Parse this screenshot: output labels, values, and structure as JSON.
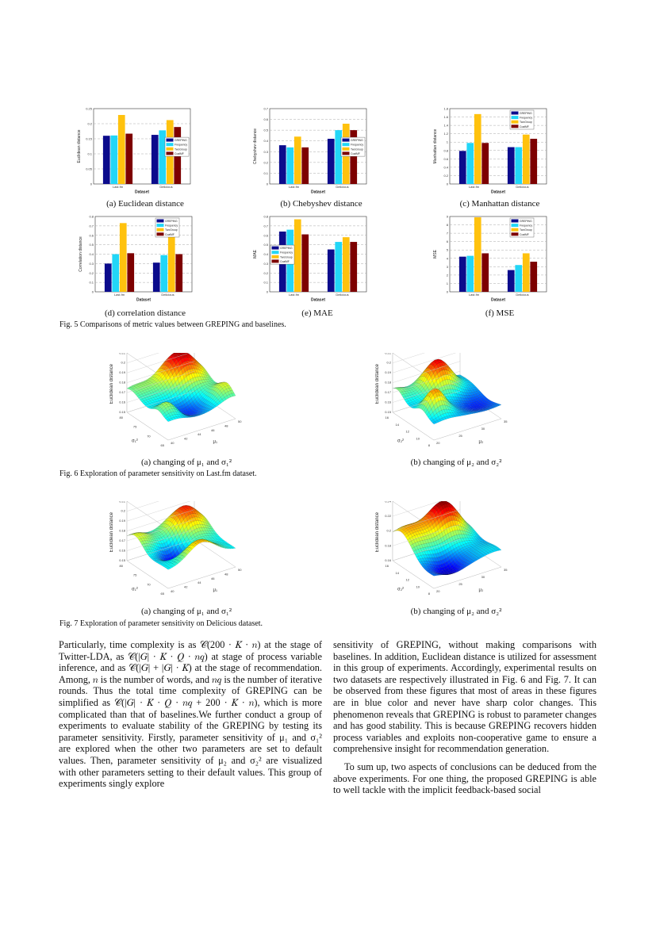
{
  "colors": {
    "greping": "#0b0b8c",
    "frequency": "#22d6f7",
    "twogroup": "#ffc20e",
    "coalmf": "#7d0000"
  },
  "fig5": {
    "caption": "Fig. 5  Comparisons of metric values between GREPING and baselines.",
    "subcaptions": [
      "(a) Euclidean distance",
      "(b) Chebyshev distance",
      "(c) Manhattan distance",
      "(d) correlation distance",
      "(e) MAE",
      "(f) MSE"
    ]
  },
  "fig6": {
    "caption": "Fig. 6  Exploration of parameter sensitivity on Last.fm dataset.",
    "subcaptions": [
      "(a) changing of μ₁ and σ₁²",
      "(b) changing of μ₂ and σ₂²"
    ]
  },
  "fig7": {
    "caption": "Fig. 7  Exploration of parameter sensitivity on Delicious dataset.",
    "subcaptions": [
      "(a) changing of μ₁ and σ₁²",
      "(b) changing of μ₂ and σ₂²"
    ]
  },
  "chart_data": [
    {
      "type": "bar",
      "xlabel": "Dataset",
      "ylabel": "Euclidean distance",
      "categories": [
        "Last.fm",
        "Delicious"
      ],
      "ylim": [
        0,
        0.25
      ],
      "yticks": [
        "0",
        "0.05",
        "0.1",
        "0.15",
        "0.2",
        "0.25"
      ],
      "grid": true,
      "legend": "right",
      "series": [
        {
          "name": "GREPING",
          "values": [
            0.16,
            0.163
          ]
        },
        {
          "name": "Frequency",
          "values": [
            0.161,
            0.178
          ]
        },
        {
          "name": "TwoGroup",
          "values": [
            0.229,
            0.212
          ]
        },
        {
          "name": "CoalMF",
          "values": [
            0.167,
            0.189
          ]
        }
      ]
    },
    {
      "type": "bar",
      "xlabel": "Dataset",
      "ylabel": "Chebyshev distance",
      "categories": [
        "Last.fm",
        "Delicious"
      ],
      "ylim": [
        0,
        0.7
      ],
      "yticks": [
        "0",
        "0.1",
        "0.2",
        "0.3",
        "0.4",
        "0.5",
        "0.6",
        "0.7"
      ],
      "grid": true,
      "legend": "right",
      "series": [
        {
          "name": "GREPING",
          "values": [
            0.36,
            0.42
          ]
        },
        {
          "name": "Frequency",
          "values": [
            0.34,
            0.5
          ]
        },
        {
          "name": "TwoGroup",
          "values": [
            0.44,
            0.56
          ]
        },
        {
          "name": "CoalMF",
          "values": [
            0.34,
            0.5
          ]
        }
      ]
    },
    {
      "type": "bar",
      "xlabel": "Dataset",
      "ylabel": "Manhattan distance",
      "categories": [
        "Last.fm",
        "Delicious"
      ],
      "ylim": [
        0,
        1.8
      ],
      "yticks": [
        "0",
        "0.2",
        "0.4",
        "0.6",
        "0.8",
        "1",
        "1.2",
        "1.4",
        "1.6",
        "1.8"
      ],
      "grid": true,
      "legend": "top-right",
      "series": [
        {
          "name": "GREPING",
          "values": [
            0.79,
            0.88
          ]
        },
        {
          "name": "Frequency",
          "values": [
            0.98,
            0.88
          ]
        },
        {
          "name": "TwoGroup",
          "values": [
            1.67,
            1.18
          ]
        },
        {
          "name": "CoalMF",
          "values": [
            0.98,
            1.08
          ]
        }
      ]
    },
    {
      "type": "bar",
      "xlabel": "Dataset",
      "ylabel": "Correlation distance",
      "categories": [
        "Last.fm",
        "Delicious"
      ],
      "ylim": [
        0,
        0.8
      ],
      "yticks": [
        "0",
        "0.1",
        "0.2",
        "0.3",
        "0.4",
        "0.5",
        "0.6",
        "0.7",
        "0.8"
      ],
      "grid": true,
      "legend": "top-right",
      "series": [
        {
          "name": "GREPING",
          "values": [
            0.3,
            0.31
          ]
        },
        {
          "name": "Frequency",
          "values": [
            0.4,
            0.39
          ]
        },
        {
          "name": "TwoGroup",
          "values": [
            0.73,
            0.7
          ]
        },
        {
          "name": "CoalMF",
          "values": [
            0.41,
            0.4
          ]
        }
      ]
    },
    {
      "type": "bar",
      "xlabel": "Dataset",
      "ylabel": "MAE",
      "categories": [
        "Last.fm",
        "Delicious"
      ],
      "ylim": [
        0,
        0.8
      ],
      "yticks": [
        "0",
        "0.1",
        "0.2",
        "0.3",
        "0.4",
        "0.5",
        "0.6",
        "0.7",
        "0.8"
      ],
      "grid": true,
      "legend": "left",
      "series": [
        {
          "name": "GREPING",
          "values": [
            0.64,
            0.45
          ]
        },
        {
          "name": "Frequency",
          "values": [
            0.66,
            0.53
          ]
        },
        {
          "name": "TwoGroup",
          "values": [
            0.77,
            0.58
          ]
        },
        {
          "name": "CoalMF",
          "values": [
            0.61,
            0.53
          ]
        }
      ]
    },
    {
      "type": "bar",
      "xlabel": "Dataset",
      "ylabel": "MSE",
      "categories": [
        "Last.fm",
        "Delicious"
      ],
      "ylim": [
        0,
        9
      ],
      "yticks": [
        "0",
        "1",
        "2",
        "3",
        "4",
        "5",
        "6",
        "7",
        "8",
        "9"
      ],
      "grid": true,
      "legend": "top-right",
      "series": [
        {
          "name": "GREPING",
          "values": [
            4.2,
            2.6
          ]
        },
        {
          "name": "Frequency",
          "values": [
            4.3,
            3.2
          ]
        },
        {
          "name": "TwoGroup",
          "values": [
            8.9,
            4.6
          ]
        },
        {
          "name": "CoalMF",
          "values": [
            4.6,
            3.6
          ]
        }
      ]
    },
    {
      "type": "surface",
      "zlabel": "Euclidean distance",
      "xlabel": "μ₁",
      "ylabel": "σ₁²",
      "xlim": [
        40,
        50
      ],
      "ylim": [
        65,
        80
      ],
      "zlim": [
        0.15,
        0.21
      ],
      "xticks": [
        "40",
        "42",
        "44",
        "46",
        "48",
        "50"
      ],
      "yticks": [
        "65",
        "70",
        "75",
        "80"
      ],
      "zticks": [
        "0.15",
        "0.16",
        "0.17",
        "0.18",
        "0.19",
        "0.2",
        "0.21"
      ],
      "colormap": "jet"
    },
    {
      "type": "surface",
      "zlabel": "Euclidean distance",
      "xlabel": "μ₂",
      "ylabel": "σ₂²",
      "xlim": [
        20,
        35
      ],
      "ylim": [
        8,
        16
      ],
      "zlim": [
        0.15,
        0.21
      ],
      "xticks": [
        "20",
        "25",
        "30",
        "35"
      ],
      "yticks": [
        "8",
        "10",
        "12",
        "14",
        "16"
      ],
      "zticks": [
        "0.15",
        "0.16",
        "0.17",
        "0.18",
        "0.19",
        "0.2",
        "0.21"
      ],
      "colormap": "jet"
    },
    {
      "type": "surface",
      "zlabel": "Euclidean distance",
      "xlabel": "μ₁",
      "ylabel": "σ₁²",
      "xlim": [
        40,
        50
      ],
      "ylim": [
        65,
        80
      ],
      "zlim": [
        0.15,
        0.21
      ],
      "xticks": [
        "40",
        "42",
        "44",
        "46",
        "48",
        "50"
      ],
      "yticks": [
        "65",
        "70",
        "75",
        "80"
      ],
      "zticks": [
        "0.15",
        "0.16",
        "0.17",
        "0.18",
        "0.19",
        "0.2",
        "0.21"
      ],
      "colormap": "jet"
    },
    {
      "type": "surface",
      "zlabel": "Euclidean distance",
      "xlabel": "μ₂",
      "ylabel": "σ₂²",
      "xlim": [
        20,
        35
      ],
      "ylim": [
        8,
        16
      ],
      "zlim": [
        0.16,
        0.24
      ],
      "xticks": [
        "20",
        "25",
        "30",
        "35"
      ],
      "yticks": [
        "8",
        "10",
        "12",
        "14",
        "16"
      ],
      "zticks": [
        "0.16",
        "0.18",
        "0.2",
        "0.22",
        "0.24"
      ],
      "colormap": "jet"
    }
  ],
  "body": {
    "left": "Particularly, time complexity is as 𝒞(200 · 𝐾 · 𝑛) at the stage of Twitter-LDA, as 𝒞(|𝐺| · 𝐾 · 𝑄 · 𝑛𝑞) at stage of process variable inference, and as 𝒞(|𝐺| + |𝐺| · 𝐾) at the stage of recommendation. Among, 𝑛 is the number of words, and 𝑛𝑞 is the number of iterative rounds. Thus the total time complexity of GREPING can be simplified as 𝒞(|𝐺| · 𝐾 · 𝑄 · 𝑛𝑞 + 200 · 𝐾 · 𝑛), which is more complicated than that of baselines.We further conduct a group of experiments to evaluate stability of the GREPING by testing its parameter sensitivity. Firstly, parameter sensitivity of μ₁ and σ₁² are explored when the other two parameters are set to default values. Then, parameter sensitivity of μ₂ and σ₂² are visualized with other parameters setting to their default values. This group of experiments singly explore",
    "right_p1": "sensitivity of GREPING, without making comparisons with baselines. In addition, Euclidean distance is utilized for assessment in this group of experiments. Accordingly, experimental results on two datasets are respectively illustrated in Fig. 6 and Fig. 7. It can be observed from these figures that most of areas in these figures are in blue color and never have sharp color changes. This phenomenon reveals that GREPING is robust to parameter changes and has good stability. This is because GREPING recovers hidden process variables and exploits non-cooperative game to ensure a comprehensive insight for recommendation generation.",
    "right_p2": "To sum up, two aspects of conclusions can be deduced from the above experiments. For one thing, the proposed GREPING is able to well tackle with the implicit feedback-based social"
  }
}
